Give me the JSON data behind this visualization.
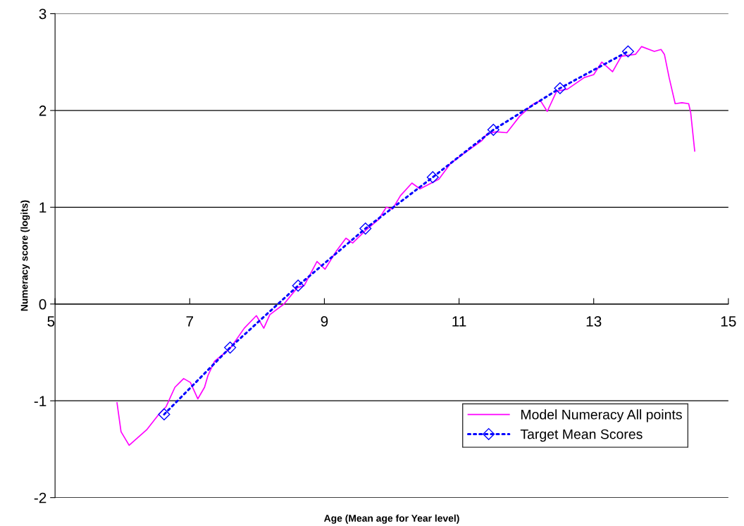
{
  "chart_data": {
    "type": "line",
    "xlabel": "Age (Mean age for Year level)",
    "ylabel": "Numeracy score (logits)",
    "xlim": [
      5,
      15
    ],
    "xticks": [
      5,
      7,
      9,
      11,
      13,
      15
    ],
    "ylim": [
      -2,
      3
    ],
    "yticks": [
      -2,
      -1,
      0,
      1,
      2,
      3
    ],
    "grid": "y",
    "legend": "bottom right",
    "series": [
      {
        "name": "Model Numeracy All points",
        "color": "#ff00ff",
        "marker": "none",
        "line_style": "solid",
        "x": [
          5.92,
          5.98,
          6.1,
          6.36,
          6.54,
          6.65,
          6.78,
          6.91,
          7.01,
          7.12,
          7.22,
          7.27,
          7.37,
          7.6,
          7.81,
          7.99,
          8.1,
          8.19,
          8.4,
          8.6,
          8.7,
          8.89,
          9.01,
          9.18,
          9.32,
          9.42,
          9.61,
          9.8,
          9.92,
          10.01,
          10.13,
          10.3,
          10.42,
          10.7,
          10.87,
          11.08,
          11.34,
          11.42,
          11.55,
          11.71,
          11.9,
          12.11,
          12.21,
          12.31,
          12.45,
          12.61,
          12.86,
          13.0,
          13.12,
          13.28,
          13.41,
          13.62,
          13.71,
          13.9,
          14.0,
          14.05,
          14.12,
          14.21,
          14.31,
          14.41,
          14.44,
          14.5
        ],
        "values": [
          -1.02,
          -1.32,
          -1.46,
          -1.3,
          -1.14,
          -1.06,
          -0.86,
          -0.77,
          -0.81,
          -0.98,
          -0.86,
          -0.74,
          -0.59,
          -0.46,
          -0.25,
          -0.12,
          -0.25,
          -0.11,
          0.0,
          0.17,
          0.19,
          0.44,
          0.36,
          0.55,
          0.68,
          0.63,
          0.76,
          0.87,
          1.0,
          0.98,
          1.12,
          1.25,
          1.19,
          1.29,
          1.45,
          1.56,
          1.69,
          1.76,
          1.78,
          1.77,
          1.94,
          2.07,
          2.1,
          1.99,
          2.2,
          2.22,
          2.34,
          2.37,
          2.5,
          2.4,
          2.56,
          2.58,
          2.66,
          2.61,
          2.63,
          2.58,
          2.34,
          2.07,
          2.08,
          2.07,
          1.98,
          1.58
        ]
      },
      {
        "name": "Target Mean Scores",
        "color": "#0000ff",
        "marker": "diamond",
        "line_style": "dotted",
        "x": [
          6.62,
          7.6,
          8.61,
          9.61,
          10.61,
          11.51,
          12.5,
          13.51
        ],
        "values": [
          -1.14,
          -0.45,
          0.19,
          0.78,
          1.31,
          1.8,
          2.23,
          2.61
        ]
      }
    ]
  }
}
